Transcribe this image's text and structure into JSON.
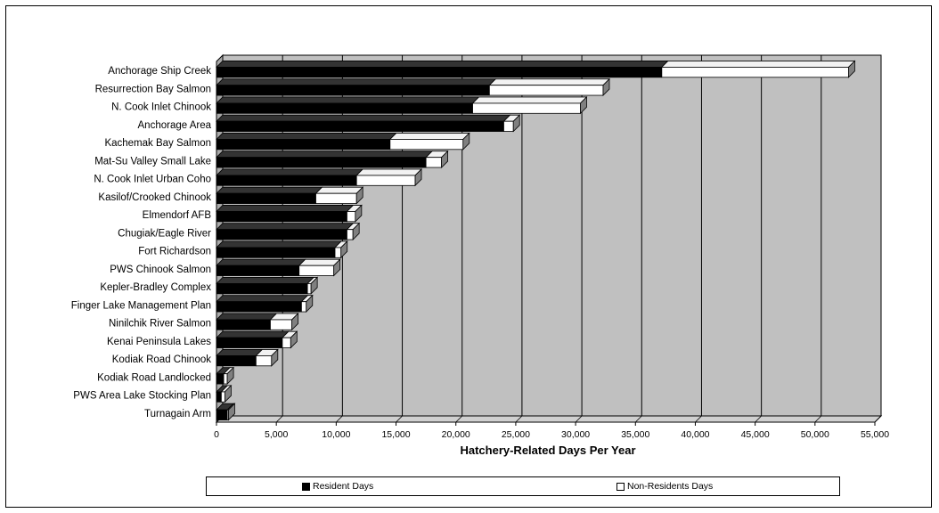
{
  "chart_data": {
    "type": "bar",
    "orientation": "horizontal",
    "stacked": true,
    "three_d": true,
    "categories": [
      "Anchorage Ship Creek",
      "Resurrection Bay Salmon",
      "N. Cook Inlet Chinook",
      "Anchorage Area",
      "Kachemak Bay Salmon",
      "Mat-Su Valley Small Lake",
      "N. Cook Inlet Urban Coho",
      "Kasilof/Crooked Chinook",
      "Elmendorf AFB",
      "Chugiak/Eagle River",
      "Fort Richardson",
      "PWS Chinook Salmon",
      "Kepler-Bradley Complex",
      "Finger Lake Management Plan",
      "Ninilchik River Salmon",
      "Kenai Peninsula Lakes",
      "Kodiak Road Chinook",
      "Kodiak Road Landlocked",
      "PWS Area Lake Stocking Plan",
      "Turnagain Arm"
    ],
    "series": [
      {
        "name": "Resident Days",
        "color": "#000000",
        "values": [
          37200,
          22800,
          21400,
          24000,
          14500,
          17500,
          11700,
          8300,
          10900,
          10900,
          9900,
          6900,
          7600,
          7100,
          4500,
          5500,
          3300,
          600,
          400,
          900
        ]
      },
      {
        "name": "Non-Residents Days",
        "color": "#ffffff",
        "values": [
          15600,
          9500,
          9000,
          800,
          6100,
          1300,
          4900,
          3400,
          700,
          500,
          500,
          2900,
          300,
          400,
          1800,
          700,
          1300,
          300,
          300,
          100
        ]
      }
    ],
    "xlabel": "Hatchery-Related Days Per Year",
    "xlim": [
      0,
      55000
    ],
    "xticks": [
      0,
      5000,
      10000,
      15000,
      20000,
      25000,
      30000,
      35000,
      40000,
      45000,
      50000,
      55000
    ],
    "xtick_labels": [
      "0",
      "5,000",
      "10,000",
      "15,000",
      "20,000",
      "25,000",
      "30,000",
      "35,000",
      "40,000",
      "45,000",
      "50,000",
      "55,000"
    ],
    "grid": true,
    "legend_position": "bottom",
    "colors": {
      "plot_background": "#c0c0c0",
      "wall_side": "#a8a8a8",
      "floor": "#d0d0d0",
      "gridline": "#000000"
    }
  },
  "legend": {
    "resident_label": "Resident Days",
    "nonresident_label": "Non-Residents Days"
  }
}
